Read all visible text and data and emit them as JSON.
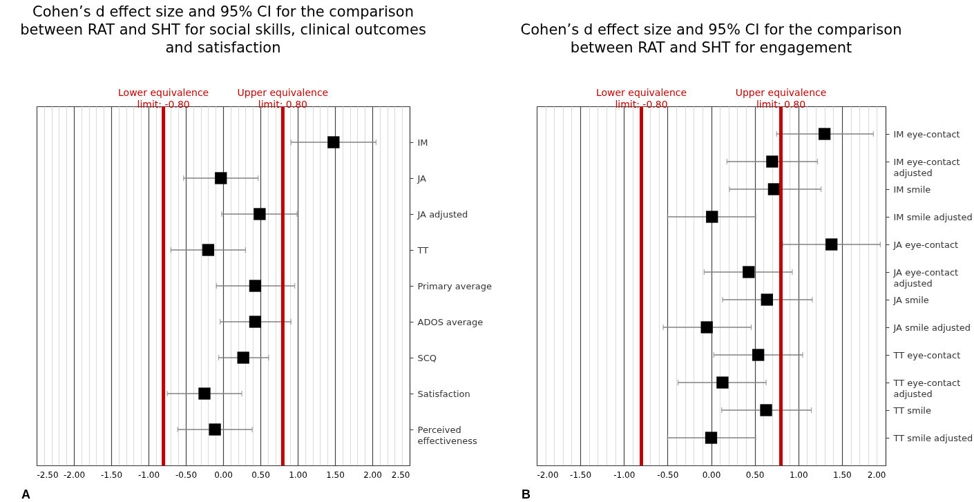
{
  "chart_data": [
    {
      "type": "scatter",
      "orientation": "horizontal",
      "marker": "square",
      "grid": "x",
      "title": "Cohen’s d effect size and 95% CI for the comparison between RAT and SHT for social skills, clinical outcomes and satisfaction",
      "categories": [
        "IM",
        "JA",
        "JA adjusted",
        "TT",
        "Primary average",
        "ADOS average",
        "SCQ",
        "Satisfaction",
        "Perceived effectiveness"
      ],
      "series": [
        {
          "color": "#000000",
          "values": [
            1.48,
            -0.03,
            0.49,
            -0.2,
            0.43,
            0.43,
            0.27,
            -0.25,
            -0.11
          ],
          "errors": [
            [
              0.91,
              2.05
            ],
            [
              -0.53,
              0.47
            ],
            [
              -0.02,
              0.99
            ],
            [
              -0.7,
              0.3
            ],
            [
              -0.09,
              0.96
            ],
            [
              -0.04,
              0.91
            ],
            [
              -0.06,
              0.61
            ],
            [
              -0.75,
              0.25
            ],
            [
              -0.61,
              0.39
            ]
          ]
        }
      ],
      "xlim": [
        -2.5,
        2.5
      ],
      "xticks": [
        {
          "value": -2.5,
          "label": "-2.50"
        },
        {
          "value": -2.4,
          "label": null
        },
        {
          "value": -2.3,
          "label": null
        },
        {
          "value": -2.2,
          "label": null
        },
        {
          "value": -2.1,
          "label": null
        },
        {
          "value": -2.0,
          "label": "-2.00"
        },
        {
          "value": -1.9,
          "label": null
        },
        {
          "value": -1.8,
          "label": null
        },
        {
          "value": -1.7,
          "label": null
        },
        {
          "value": -1.6,
          "label": null
        },
        {
          "value": -1.5,
          "label": "-1.50"
        },
        {
          "value": -1.4,
          "label": null
        },
        {
          "value": -1.3,
          "label": null
        },
        {
          "value": -1.2,
          "label": null
        },
        {
          "value": -1.1,
          "label": null
        },
        {
          "value": -1.0,
          "label": "-1.00"
        },
        {
          "value": -0.9,
          "label": null
        },
        {
          "value": -0.7,
          "label": null
        },
        {
          "value": -0.6,
          "label": null
        },
        {
          "value": -0.5,
          "label": "-0.50"
        },
        {
          "value": -0.4,
          "label": null
        },
        {
          "value": -0.3,
          "label": null
        },
        {
          "value": -0.2,
          "label": null
        },
        {
          "value": -0.1,
          "label": null
        },
        {
          "value": 0,
          "label": "0.00"
        },
        {
          "value": 0.1,
          "label": null
        },
        {
          "value": 0.2,
          "label": null
        },
        {
          "value": 0.3,
          "label": null
        },
        {
          "value": 0.4,
          "label": null
        },
        {
          "value": 0.5,
          "label": "0.50"
        },
        {
          "value": 0.6,
          "label": null
        },
        {
          "value": 0.7,
          "label": null
        },
        {
          "value": 0.9,
          "label": null
        },
        {
          "value": 1.0,
          "label": "1.00"
        },
        {
          "value": 1.1,
          "label": null
        },
        {
          "value": 1.2,
          "label": null
        },
        {
          "value": 1.3,
          "label": null
        },
        {
          "value": 1.4,
          "label": null
        },
        {
          "value": 1.5,
          "label": "1.50"
        },
        {
          "value": 1.6,
          "label": null
        },
        {
          "value": 1.7,
          "label": null
        },
        {
          "value": 1.8,
          "label": null
        },
        {
          "value": 1.9,
          "label": null
        },
        {
          "value": 2.0,
          "label": "2.00"
        },
        {
          "value": 2.1,
          "label": null
        },
        {
          "value": 2.2,
          "label": null
        },
        {
          "value": 2.3,
          "label": null
        },
        {
          "value": 2.4,
          "label": null
        },
        {
          "value": 2.5,
          "label": "2.50"
        }
      ],
      "ref_lines": [
        {
          "axis": "x",
          "value": -0.8,
          "label": "Lower equivalence limit: -0.80",
          "color": "#c00000"
        },
        {
          "axis": "x",
          "value": 0.8,
          "label": "Upper equivalence limit: 0.80",
          "color": "#c00000"
        }
      ],
      "annotations": [
        "A"
      ]
    },
    {
      "type": "scatter",
      "orientation": "horizontal",
      "marker": "square",
      "grid": "x",
      "title": "Cohen’s d effect size and 95% CI for the comparison between RAT and SHT for engagement",
      "categories": [
        "IM eye-contact",
        "IM eye-contact adjusted",
        "IM smile",
        "IM smile adjusted",
        "JA eye-contact",
        "JA eye-contact adjusted",
        "JA smile",
        "JA smile adjusted",
        "TT eye-contact",
        "TT eye-contact adjusted",
        "TT smile",
        "TT smile adjusted"
      ],
      "series": [
        {
          "color": "#000000",
          "values": [
            1.3,
            0.7,
            0.72,
            0.01,
            1.38,
            0.43,
            0.64,
            -0.05,
            0.54,
            0.13,
            0.63,
            0.0
          ],
          "errors": [
            [
              0.75,
              1.86
            ],
            [
              0.18,
              1.22
            ],
            [
              0.21,
              1.26
            ],
            [
              -0.5,
              0.51
            ],
            [
              0.82,
              1.94
            ],
            [
              -0.08,
              0.93
            ],
            [
              0.13,
              1.16
            ],
            [
              -0.55,
              0.46
            ],
            [
              0.03,
              1.05
            ],
            [
              -0.38,
              0.63
            ],
            [
              0.12,
              1.15
            ],
            [
              -0.5,
              0.51
            ]
          ]
        }
      ],
      "xlim": [
        -2,
        2
      ],
      "xticks": [
        {
          "value": -2.0,
          "label": "-2.00"
        },
        {
          "value": -1.9,
          "label": null
        },
        {
          "value": -1.8,
          "label": null
        },
        {
          "value": -1.7,
          "label": null
        },
        {
          "value": -1.6,
          "label": null
        },
        {
          "value": -1.5,
          "label": "-1.50"
        },
        {
          "value": -1.4,
          "label": null
        },
        {
          "value": -1.3,
          "label": null
        },
        {
          "value": -1.2,
          "label": null
        },
        {
          "value": -1.1,
          "label": null
        },
        {
          "value": -1.0,
          "label": "-1.00"
        },
        {
          "value": -0.9,
          "label": null
        },
        {
          "value": -0.7,
          "label": null
        },
        {
          "value": -0.6,
          "label": null
        },
        {
          "value": -0.5,
          "label": "-0.50"
        },
        {
          "value": -0.4,
          "label": null
        },
        {
          "value": -0.3,
          "label": null
        },
        {
          "value": -0.2,
          "label": null
        },
        {
          "value": -0.1,
          "label": null
        },
        {
          "value": 0,
          "label": "0.00"
        },
        {
          "value": 0.1,
          "label": null
        },
        {
          "value": 0.2,
          "label": null
        },
        {
          "value": 0.3,
          "label": null
        },
        {
          "value": 0.4,
          "label": null
        },
        {
          "value": 0.5,
          "label": "0.50"
        },
        {
          "value": 0.6,
          "label": null
        },
        {
          "value": 0.7,
          "label": null
        },
        {
          "value": 0.9,
          "label": null
        },
        {
          "value": 1.0,
          "label": "1.00"
        },
        {
          "value": 1.1,
          "label": null
        },
        {
          "value": 1.2,
          "label": null
        },
        {
          "value": 1.3,
          "label": null
        },
        {
          "value": 1.4,
          "label": null
        },
        {
          "value": 1.5,
          "label": "1.50"
        },
        {
          "value": 1.6,
          "label": null
        },
        {
          "value": 1.7,
          "label": null
        },
        {
          "value": 1.8,
          "label": null
        },
        {
          "value": 1.9,
          "label": null
        },
        {
          "value": 2.0,
          "label": "2.00"
        }
      ],
      "ref_lines": [
        {
          "axis": "x",
          "value": -0.8,
          "label": "Lower equivalence limit: -0.80",
          "color": "#c00000"
        },
        {
          "axis": "x",
          "value": 0.8,
          "label": "Upper equivalence limit: 0.80",
          "color": "#c00000"
        }
      ],
      "annotations": [
        "B"
      ]
    }
  ]
}
